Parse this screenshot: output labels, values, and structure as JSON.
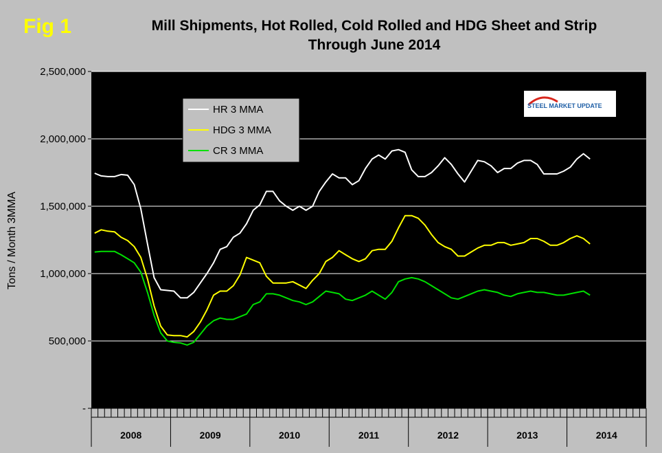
{
  "figure_label": "Fig 1",
  "logo_text": "STEEL MARKET UPDATE",
  "chart_data": {
    "type": "line",
    "title_line1": "Mill Shipments, Hot Rolled, Cold Rolled and HDG Sheet and Strip",
    "title_line2": "Through June 2014",
    "ylabel": "Tons / Month 3MMA",
    "xlabel": "",
    "ylim": [
      0,
      2500000
    ],
    "ytick_labels": [
      "-",
      "500,000",
      "1,000,000",
      "1,500,000",
      "2,000,000",
      "2,500,000"
    ],
    "ytick_values": [
      0,
      500000,
      1000000,
      1500000,
      2000000,
      2500000
    ],
    "year_groups": [
      "2008",
      "2009",
      "2010",
      "2011",
      "2012",
      "2013",
      "2014"
    ],
    "months_per_year": 12,
    "grid": "horizontal",
    "legend_position": "top-left",
    "background": "#000000",
    "series": [
      {
        "name": "HR 3 MMA",
        "color": "#ffffff",
        "values": [
          1745000,
          1725000,
          1720000,
          1720000,
          1735000,
          1730000,
          1660000,
          1480000,
          1220000,
          970000,
          880000,
          875000,
          870000,
          820000,
          820000,
          860000,
          930000,
          1000000,
          1080000,
          1180000,
          1200000,
          1270000,
          1300000,
          1370000,
          1470000,
          1510000,
          1610000,
          1610000,
          1540000,
          1500000,
          1470000,
          1500000,
          1470000,
          1500000,
          1610000,
          1680000,
          1740000,
          1710000,
          1710000,
          1660000,
          1690000,
          1780000,
          1850000,
          1880000,
          1850000,
          1910000,
          1920000,
          1900000,
          1770000,
          1720000,
          1720000,
          1750000,
          1800000,
          1860000,
          1810000,
          1740000,
          1680000,
          1760000,
          1840000,
          1830000,
          1800000,
          1750000,
          1780000,
          1780000,
          1820000,
          1840000,
          1840000,
          1810000,
          1740000,
          1740000,
          1740000,
          1760000,
          1790000,
          1850000,
          1890000,
          1850000
        ]
      },
      {
        "name": "HDG 3 MMA",
        "color": "#ffff00",
        "values": [
          1300000,
          1325000,
          1315000,
          1310000,
          1270000,
          1245000,
          1200000,
          1120000,
          960000,
          760000,
          610000,
          545000,
          540000,
          540000,
          530000,
          570000,
          640000,
          730000,
          840000,
          870000,
          870000,
          910000,
          990000,
          1120000,
          1100000,
          1080000,
          980000,
          930000,
          930000,
          930000,
          940000,
          915000,
          890000,
          950000,
          1000000,
          1090000,
          1120000,
          1170000,
          1140000,
          1110000,
          1090000,
          1110000,
          1170000,
          1180000,
          1180000,
          1240000,
          1340000,
          1430000,
          1430000,
          1410000,
          1360000,
          1290000,
          1230000,
          1200000,
          1180000,
          1130000,
          1130000,
          1160000,
          1190000,
          1210000,
          1210000,
          1230000,
          1230000,
          1210000,
          1220000,
          1230000,
          1260000,
          1260000,
          1240000,
          1210000,
          1210000,
          1230000,
          1260000,
          1280000,
          1260000,
          1220000
        ]
      },
      {
        "name": "CR 3 MMA",
        "color": "#00e000",
        "values": [
          1160000,
          1165000,
          1165000,
          1165000,
          1140000,
          1110000,
          1080000,
          1010000,
          860000,
          690000,
          560000,
          500000,
          490000,
          485000,
          470000,
          490000,
          550000,
          610000,
          650000,
          670000,
          660000,
          660000,
          680000,
          700000,
          770000,
          790000,
          850000,
          850000,
          840000,
          820000,
          800000,
          790000,
          770000,
          790000,
          830000,
          870000,
          860000,
          850000,
          810000,
          800000,
          820000,
          840000,
          870000,
          840000,
          810000,
          860000,
          940000,
          960000,
          970000,
          960000,
          940000,
          910000,
          880000,
          850000,
          820000,
          810000,
          830000,
          850000,
          870000,
          880000,
          870000,
          860000,
          840000,
          830000,
          850000,
          860000,
          870000,
          860000,
          860000,
          850000,
          840000,
          840000,
          850000,
          860000,
          870000,
          840000
        ]
      }
    ]
  }
}
